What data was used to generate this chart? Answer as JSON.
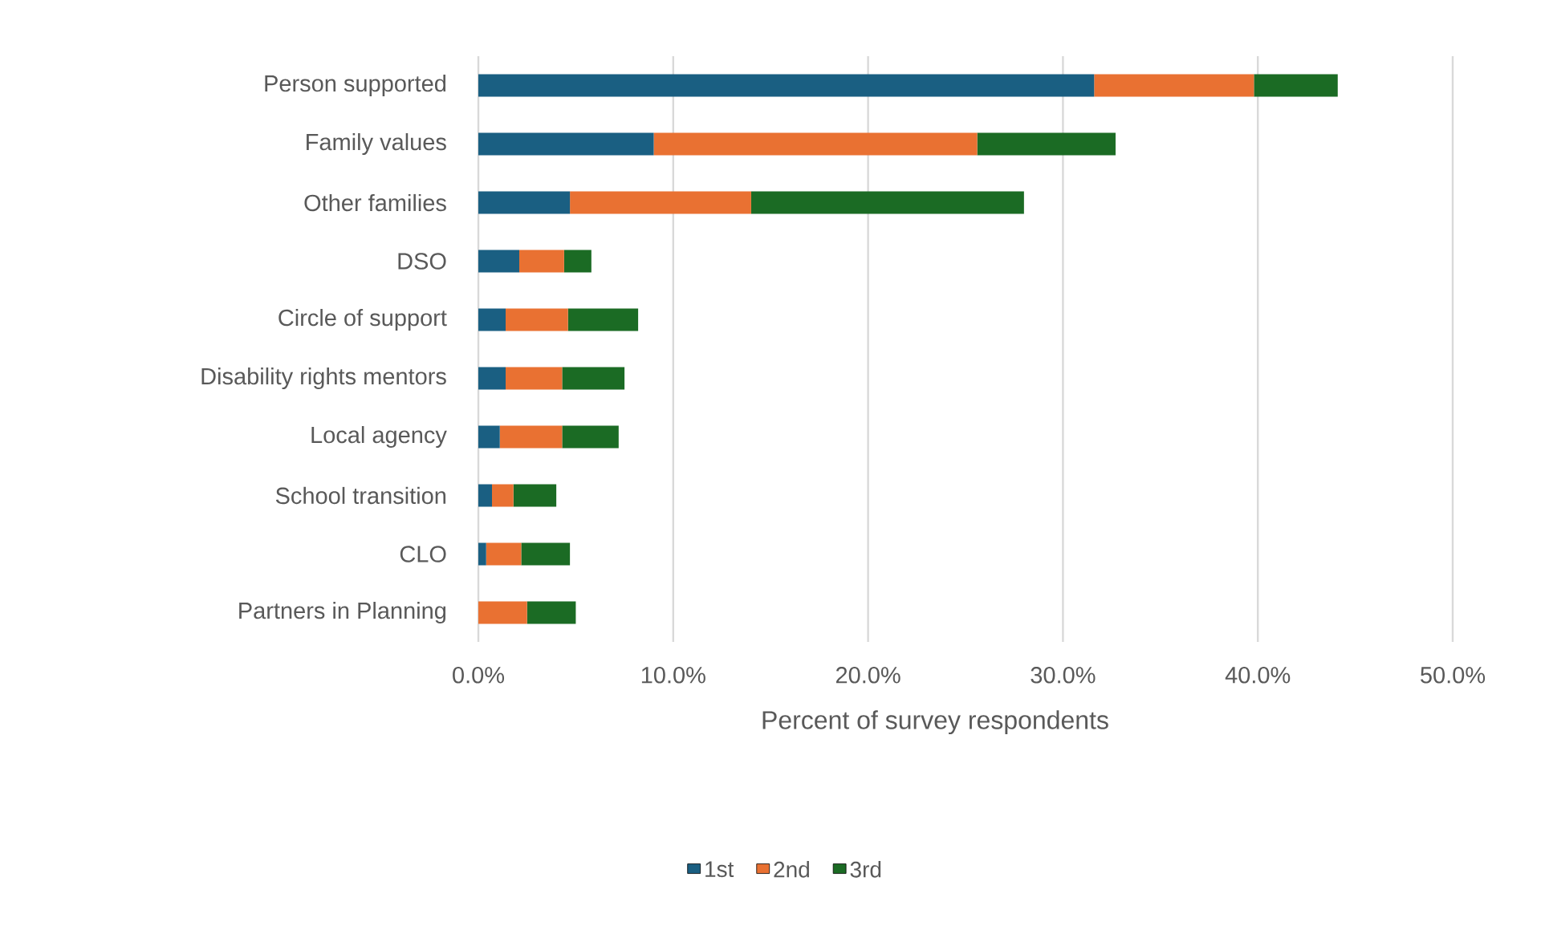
{
  "chart_data": {
    "type": "bar",
    "orientation": "horizontal",
    "stacked": true,
    "xlabel": "Percent of survey respondents",
    "categories": [
      "Person supported",
      "Family values",
      "Other families",
      "DSO",
      "Circle of support",
      "Disability rights mentors",
      "Local agency",
      "School transition",
      "CLO",
      "Partners in Planning"
    ],
    "series": [
      {
        "name": "1st",
        "color": "#1a5f82",
        "values": [
          31.6,
          9.0,
          4.7,
          2.1,
          1.4,
          1.4,
          1.1,
          0.7,
          0.4,
          0
        ]
      },
      {
        "name": "2nd",
        "color": "#e97132",
        "values": [
          8.2,
          16.6,
          9.3,
          2.3,
          3.2,
          2.9,
          3.2,
          1.1,
          1.8,
          2.5
        ]
      },
      {
        "name": "3rd",
        "color": "#1b6b24",
        "values": [
          4.3,
          7.1,
          14.0,
          1.4,
          3.6,
          3.2,
          2.9,
          2.2,
          2.5,
          2.5
        ]
      }
    ],
    "xlim": [
      0,
      50
    ],
    "xticks": [
      {
        "value": 0,
        "label": "0.0%"
      },
      {
        "value": 10,
        "label": "10.0%"
      },
      {
        "value": 20,
        "label": "20.0%"
      },
      {
        "value": 30,
        "label": "30.0%"
      },
      {
        "value": 40,
        "label": "40.0%"
      },
      {
        "value": 50,
        "label": "50.0%"
      }
    ],
    "grid": "x",
    "legend": "bottom"
  }
}
